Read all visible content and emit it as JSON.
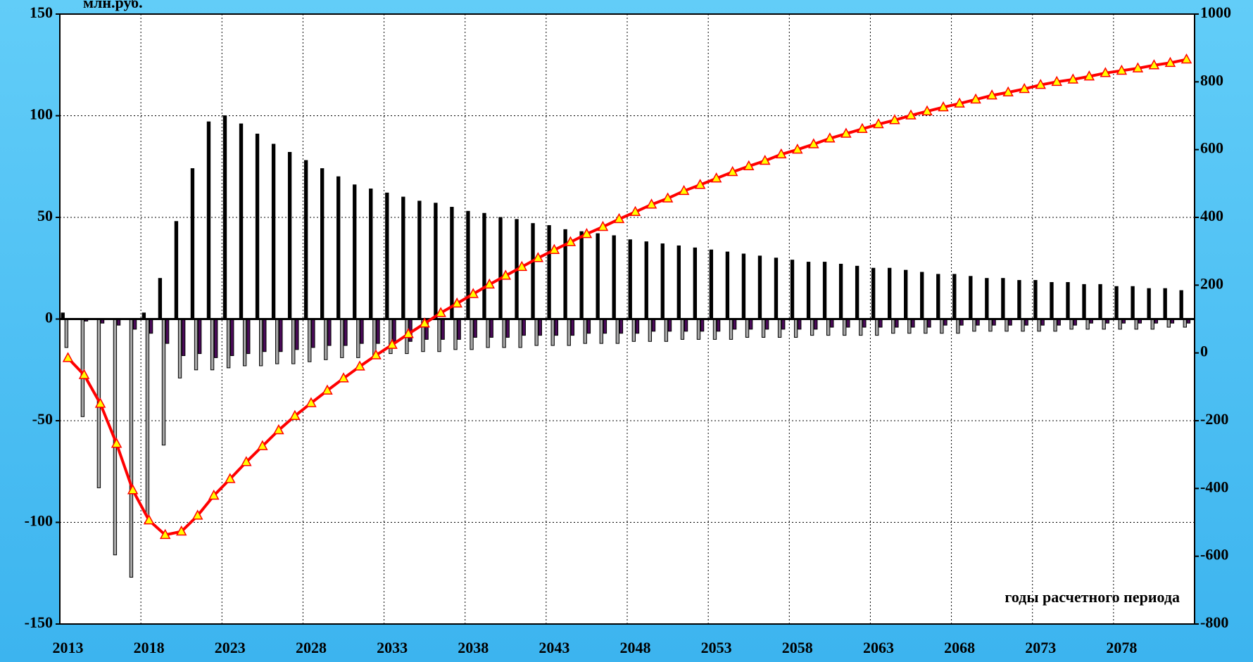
{
  "chart_data": {
    "type": "bar",
    "title": "млн.руб.",
    "annotation": "годы расчетного периода",
    "categories": [
      2013,
      null,
      null,
      null,
      null,
      2018,
      null,
      null,
      null,
      null,
      2023,
      null,
      null,
      null,
      null,
      2028,
      null,
      null,
      null,
      null,
      2033,
      null,
      null,
      null,
      null,
      2038,
      null,
      null,
      null,
      null,
      2043,
      null,
      null,
      null,
      null,
      2048,
      null,
      null,
      null,
      null,
      2053,
      null,
      null,
      null,
      null,
      2058,
      null,
      null,
      null,
      null,
      2063,
      null,
      null,
      null,
      null,
      2068,
      null,
      null,
      null,
      null,
      2073,
      null,
      null,
      null,
      null,
      2078,
      null,
      null,
      null,
      null
    ],
    "series": [
      {
        "type": "bar",
        "color": "#000000",
        "values": [
          3,
          0,
          0,
          0,
          0,
          3,
          20,
          48,
          74,
          97,
          100,
          96,
          91,
          86,
          82,
          78,
          74,
          70,
          66,
          64,
          62,
          60,
          58,
          57,
          55,
          53,
          52,
          50,
          49,
          47,
          46,
          44,
          43,
          42,
          41,
          39,
          38,
          37,
          36,
          35,
          34,
          33,
          32,
          31,
          30,
          29,
          28,
          28,
          27,
          26,
          25,
          25,
          24,
          23,
          22,
          22,
          21,
          20,
          20,
          19,
          19,
          18,
          18,
          17,
          17,
          16,
          16,
          15,
          15,
          14
        ]
      },
      {
        "type": "bar",
        "color": "#a6a6a6",
        "values": [
          -14,
          -48,
          -83,
          -116,
          -127,
          -97,
          -62,
          -29,
          -25,
          -25,
          -24,
          -23,
          -23,
          -22,
          -22,
          -21,
          -20,
          -19,
          -19,
          -18,
          -17,
          -17,
          -16,
          -16,
          -15,
          -15,
          -14,
          -14,
          -14,
          -13,
          -13,
          -13,
          -12,
          -12,
          -12,
          -11,
          -11,
          -11,
          -10,
          -10,
          -10,
          -10,
          -9,
          -9,
          -9,
          -9,
          -8,
          -8,
          -8,
          -8,
          -8,
          -7,
          -7,
          -7,
          -7,
          -7,
          -6,
          -6,
          -6,
          -6,
          -6,
          -6,
          -5,
          -5,
          -5,
          -5,
          -5,
          -5,
          -4,
          -4
        ]
      },
      {
        "type": "bar",
        "color": "#4b0a5a",
        "values": [
          0,
          -1,
          -2,
          -3,
          -5,
          -7,
          -12,
          -18,
          -17,
          -19,
          -18,
          -17,
          -16,
          -16,
          -15,
          -14,
          -13,
          -13,
          -12,
          -12,
          -11,
          -11,
          -10,
          -10,
          -10,
          -9,
          -9,
          -9,
          -8,
          -8,
          -8,
          -8,
          -7,
          -7,
          -7,
          -7,
          -6,
          -6,
          -6,
          -6,
          -6,
          -5,
          -5,
          -5,
          -5,
          -5,
          -5,
          -4,
          -4,
          -4,
          -4,
          -4,
          -4,
          -4,
          -3,
          -3,
          -3,
          -3,
          -3,
          -3,
          -3,
          -3,
          -3,
          -2,
          -2,
          -2,
          -2,
          -2,
          -2,
          -2
        ]
      },
      {
        "type": "line",
        "axis": "y2",
        "color": "#ff0000",
        "marker_color": "#ffff00",
        "values": [
          -15,
          -65,
          -150,
          -268,
          -405,
          -494,
          -537,
          -527,
          -480,
          -421,
          -372,
          -322,
          -275,
          -228,
          -186,
          -148,
          -111,
          -75,
          -40,
          -7,
          24,
          56,
          87,
          118,
          146,
          174,
          202,
          228,
          254,
          280,
          304,
          327,
          351,
          372,
          395,
          416,
          438,
          456,
          478,
          496,
          515,
          534,
          551,
          567,
          586,
          600,
          616,
          633,
          647,
          661,
          675,
          687,
          701,
          713,
          725,
          736,
          748,
          760,
          769,
          779,
          791,
          800,
          807,
          816,
          826,
          833,
          840,
          849,
          856,
          866
        ]
      }
    ],
    "ylim": [
      -150,
      150
    ],
    "yticks": [
      -150,
      -100,
      -50,
      0,
      50,
      100,
      150
    ],
    "y2lim": [
      -800,
      1000
    ],
    "y2ticks": [
      -800,
      -600,
      -400,
      -200,
      0,
      200,
      400,
      600,
      800,
      1000
    ],
    "grid": true
  }
}
